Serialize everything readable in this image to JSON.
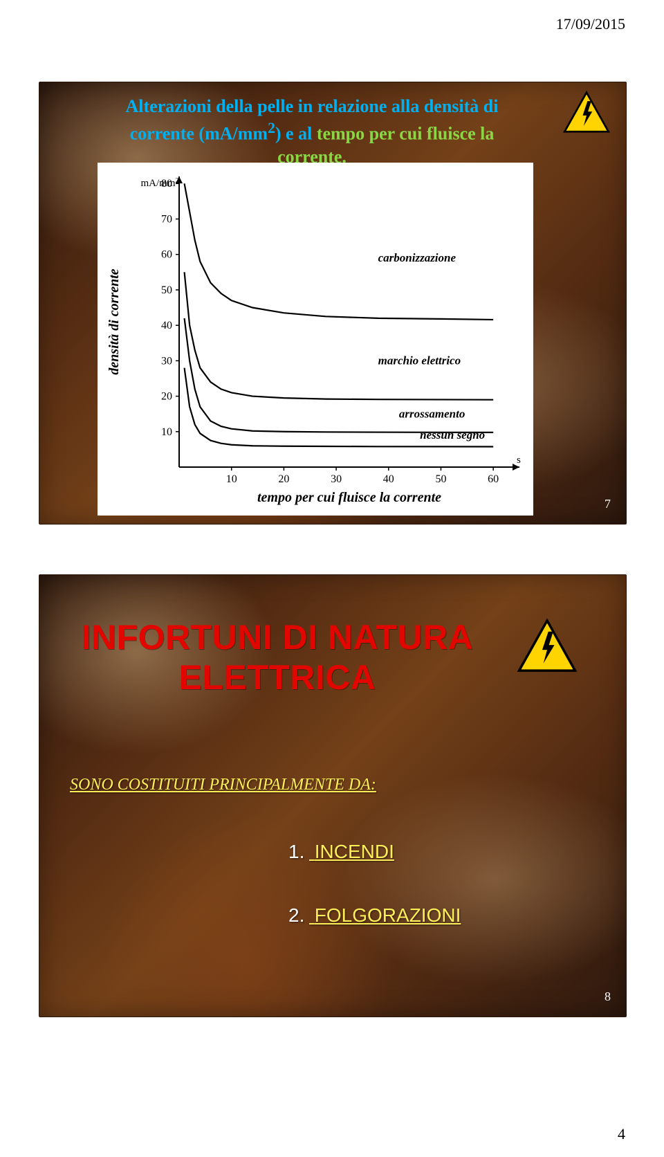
{
  "meta": {
    "date": "17/09/2015",
    "page_number": "4"
  },
  "slide1": {
    "slide_number": "7",
    "title_l1": "Alterazioni della pelle in relazione alla densità di",
    "title_l2a": "corrente (mA/mm",
    "title_l2sup": "2",
    "title_l2b": ") e al ",
    "title_l2c": "tempo per cui fluisce la",
    "title_l3": "corrente.",
    "chart": {
      "type": "line",
      "background_color": "#ffffff",
      "axis_color": "#000000",
      "line_color": "#000000",
      "line_width": 2.2,
      "text_color": "#000000",
      "label_font": "italic 16px Times New Roman",
      "axis_label_font": "italic bold 18px Times New Roman",
      "tick_font": "14px Times New Roman",
      "y_axis_label": "densità di corrente",
      "y_unit_label": "mA/mm",
      "y_unit_sup": "2",
      "x_axis_label": "tempo per cui fluisce la corrente",
      "x_unit_label": "s",
      "xlim": [
        0,
        65
      ],
      "ylim": [
        0,
        82
      ],
      "xticks": [
        10,
        20,
        30,
        40,
        50,
        60
      ],
      "yticks": [
        10,
        20,
        30,
        40,
        50,
        60,
        70,
        80
      ],
      "curves": [
        {
          "label": "carbonizzazione",
          "label_at": [
            38,
            58
          ],
          "points": [
            [
              1,
              80
            ],
            [
              2,
              72
            ],
            [
              3,
              64
            ],
            [
              4,
              58
            ],
            [
              6,
              52
            ],
            [
              8,
              49
            ],
            [
              10,
              47
            ],
            [
              14,
              45
            ],
            [
              20,
              43.5
            ],
            [
              28,
              42.5
            ],
            [
              38,
              42
            ],
            [
              50,
              41.8
            ],
            [
              60,
              41.6
            ]
          ]
        },
        {
          "label": "marchio elettrico",
          "label_at": [
            38,
            29
          ],
          "points": [
            [
              1,
              55
            ],
            [
              2,
              40
            ],
            [
              3,
              33
            ],
            [
              4,
              28
            ],
            [
              6,
              24
            ],
            [
              8,
              22
            ],
            [
              10,
              21
            ],
            [
              14,
              20
            ],
            [
              20,
              19.5
            ],
            [
              28,
              19.2
            ],
            [
              38,
              19.1
            ],
            [
              50,
              19.05
            ],
            [
              60,
              19
            ]
          ]
        },
        {
          "label": "arrossamento",
          "label_at": [
            42,
            14
          ],
          "points": [
            [
              1,
              42
            ],
            [
              2,
              30
            ],
            [
              3,
              22
            ],
            [
              4,
              17
            ],
            [
              6,
              13
            ],
            [
              8,
              11.5
            ],
            [
              10,
              10.8
            ],
            [
              14,
              10.2
            ],
            [
              20,
              10
            ],
            [
              28,
              9.9
            ],
            [
              38,
              9.85
            ],
            [
              50,
              9.8
            ],
            [
              60,
              9.78
            ]
          ]
        },
        {
          "label": "nessun segno",
          "label_at": [
            46,
            8
          ],
          "points": [
            [
              1,
              28
            ],
            [
              2,
              17
            ],
            [
              3,
              12
            ],
            [
              4,
              9.5
            ],
            [
              6,
              7.5
            ],
            [
              8,
              6.7
            ],
            [
              10,
              6.3
            ],
            [
              14,
              6
            ],
            [
              20,
              5.9
            ],
            [
              28,
              5.85
            ],
            [
              38,
              5.8
            ],
            [
              50,
              5.78
            ],
            [
              60,
              5.76
            ]
          ]
        }
      ]
    }
  },
  "slide2": {
    "slide_number": "8",
    "headline_l1": "INFORTUNI DI NATURA",
    "headline_l2": "ELETTRICA",
    "sub": "SONO COSTITUITI PRINCIPALMENTE DA:",
    "list": [
      {
        "num": "1.",
        "text": "INCENDI"
      },
      {
        "num": "2.",
        "text": "FOLGORAZIONI"
      }
    ]
  },
  "colors": {
    "title_blue": "#00b0f0",
    "title_green": "#8bd645",
    "headline_red": "#e10600",
    "accent_yellow": "#ffee58",
    "hazard_yellow": "#ffd400"
  }
}
